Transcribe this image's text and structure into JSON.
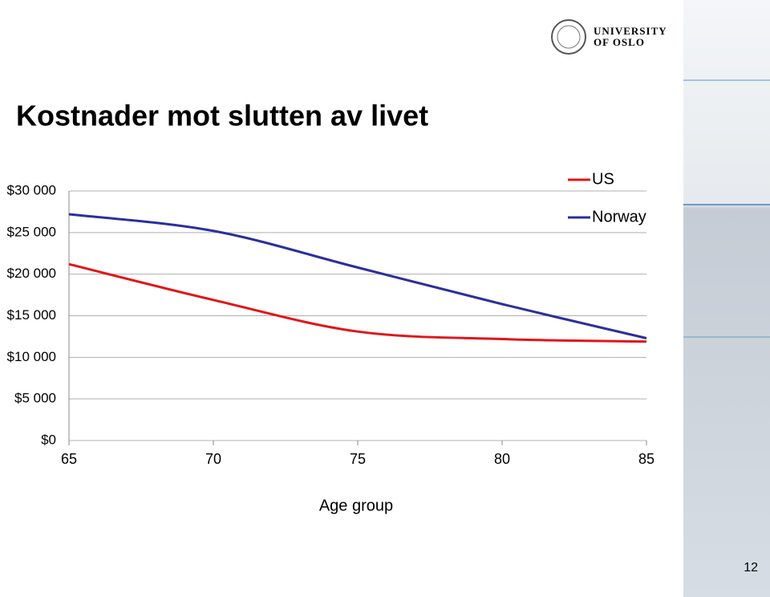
{
  "chart_data": {
    "type": "line",
    "title": "Kostnader mot slutten av livet",
    "x": [
      65,
      70,
      75,
      80,
      85
    ],
    "series": [
      {
        "name": "US",
        "color": "#e0161b",
        "values": [
          21200,
          16900,
          13100,
          12200,
          11900
        ]
      },
      {
        "name": "Norway",
        "color": "#2b2f9c",
        "values": [
          27200,
          25200,
          20800,
          16400,
          12300
        ]
      }
    ],
    "xlabel": "Age group",
    "xlim": [
      65,
      85
    ],
    "xticks": [
      65,
      70,
      75,
      80,
      85
    ],
    "ylim": [
      0,
      30000
    ],
    "yticks": [
      {
        "value": 0,
        "label": "$0"
      },
      {
        "value": 5000,
        "label": "$5 000"
      },
      {
        "value": 10000,
        "label": "$10 000"
      },
      {
        "value": 15000,
        "label": "$15 000"
      },
      {
        "value": 20000,
        "label": "$20 000"
      },
      {
        "value": 25000,
        "label": "$25 000"
      },
      {
        "value": 30000,
        "label": "$30 000"
      }
    ],
    "grid": true,
    "legend": "top-right"
  },
  "slide": {
    "logo": [
      "UNIVERSITY",
      "OF OSLO"
    ],
    "page_number": "12"
  }
}
